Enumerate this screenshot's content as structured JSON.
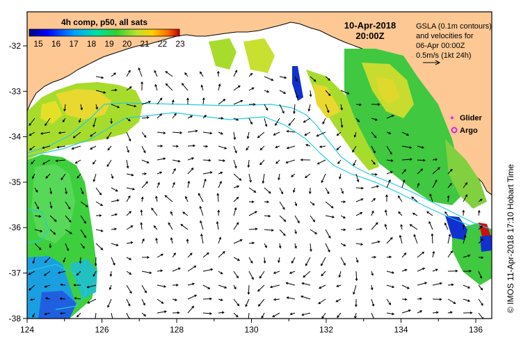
{
  "colorbar": {
    "title": "4h comp, p50, all sats",
    "ticks": [
      "15",
      "16",
      "17",
      "18",
      "19",
      "20",
      "21",
      "22",
      "23"
    ]
  },
  "header": {
    "date": "10-Apr-2018",
    "time": "20:00Z"
  },
  "info": {
    "line1": "GSLA (0.1m contours)",
    "line2": "and velocities for",
    "line3": "06-Apr 00:00Z",
    "line4": "0.5m/s (1kt 24h)"
  },
  "legend": {
    "glider": "Glider",
    "argo": "Argo"
  },
  "credit": "© IMOS 11-Apr-2018 17:10 Hobart Time",
  "axes": {
    "x_ticks": [
      "124",
      "126",
      "128",
      "130",
      "132",
      "134",
      "136"
    ],
    "y_ticks": [
      "-32",
      "-33",
      "-34",
      "-35",
      "-36",
      "-37",
      "-38"
    ]
  },
  "colors": {
    "land": "#fdc894",
    "ocean": "#ffffff",
    "contour": "#22ccdd",
    "frame": "#000000",
    "marker": "#dd22dd"
  }
}
